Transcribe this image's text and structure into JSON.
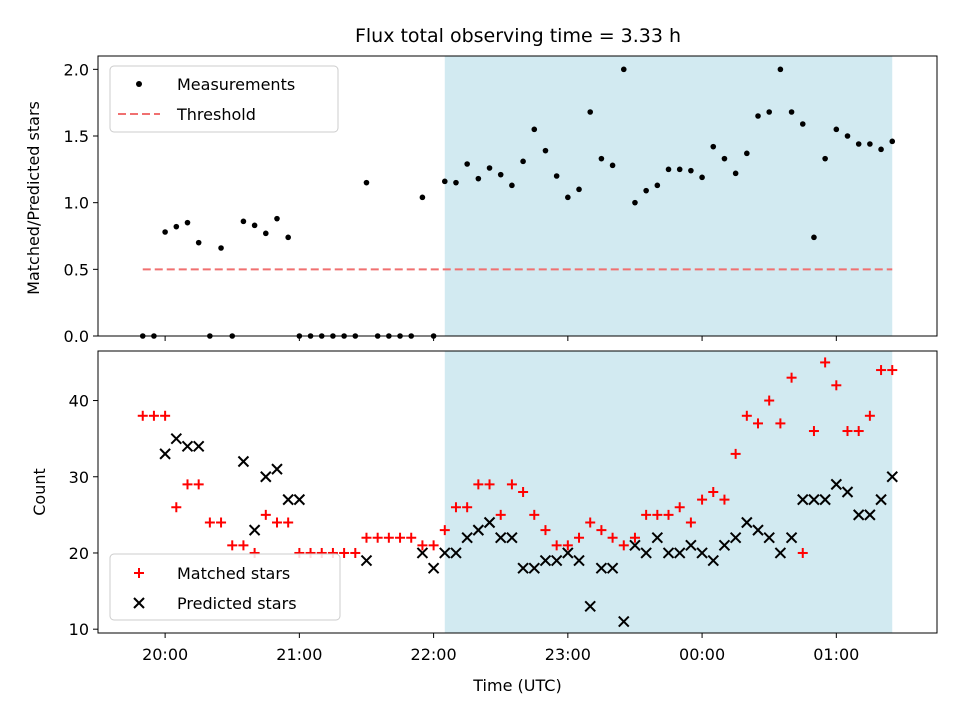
{
  "chart_data": [
    {
      "type": "scatter",
      "title": "Flux total observing time = 3.33 h",
      "xlabel": "",
      "ylabel": "Matched/Predicted stars",
      "ylim": [
        0,
        2.1
      ],
      "yticks": [
        "0.0",
        "0.5",
        "1.0",
        "1.5",
        "2.0"
      ],
      "legend_position": "top-left",
      "threshold": 0.5,
      "shaded_region": [
        "22:05",
        "01:25"
      ],
      "series": [
        {
          "name": "Measurements",
          "color": "#000000",
          "marker": "dot",
          "x": [
            "19:50",
            "19:55",
            "20:00",
            "20:05",
            "20:10",
            "20:15",
            "20:20",
            "20:25",
            "20:30",
            "20:35",
            "20:40",
            "20:45",
            "20:50",
            "20:55",
            "21:00",
            "21:05",
            "21:10",
            "21:15",
            "21:20",
            "21:25",
            "21:30",
            "21:35",
            "21:40",
            "21:45",
            "21:50",
            "21:55",
            "22:00",
            "22:05",
            "22:10",
            "22:15",
            "22:20",
            "22:25",
            "22:30",
            "22:35",
            "22:40",
            "22:45",
            "22:50",
            "22:55",
            "23:00",
            "23:05",
            "23:10",
            "23:15",
            "23:20",
            "23:25",
            "23:30",
            "23:35",
            "23:40",
            "23:45",
            "23:50",
            "23:55",
            "00:00",
            "00:05",
            "00:10",
            "00:15",
            "00:20",
            "00:25",
            "00:30",
            "00:35",
            "00:40",
            "00:45",
            "00:50",
            "00:55",
            "01:00",
            "01:05",
            "01:10",
            "01:15",
            "01:20",
            "01:25"
          ],
          "values": [
            0,
            0,
            0.78,
            0.82,
            0.85,
            0.7,
            0,
            0.66,
            0,
            0.86,
            0.83,
            0.77,
            0.88,
            0.74,
            0,
            0,
            0,
            0,
            0,
            0,
            1.15,
            0,
            0,
            0,
            0,
            1.04,
            0,
            1.16,
            1.15,
            1.29,
            1.18,
            1.26,
            1.21,
            1.13,
            1.31,
            1.55,
            1.39,
            1.2,
            1.04,
            1.1,
            1.68,
            1.33,
            1.28,
            2.0,
            1.0,
            1.09,
            1.13,
            1.25,
            1.25,
            1.24,
            1.19,
            1.42,
            1.33,
            1.22,
            1.37,
            1.65,
            1.68,
            2.0,
            1.68,
            1.59,
            0.74,
            1.33,
            1.55,
            1.5,
            1.44,
            1.44,
            1.4,
            1.46
          ]
        },
        {
          "name": "Threshold",
          "color": "#f07070",
          "marker": "dashed-line",
          "x": [
            "19:50",
            "01:25"
          ],
          "values": [
            0.5,
            0.5
          ]
        }
      ]
    },
    {
      "type": "scatter",
      "title": "",
      "xlabel": "Time (UTC)",
      "ylabel": "Count",
      "ylim": [
        9.5,
        46.5
      ],
      "yticks": [
        "10",
        "20",
        "30",
        "40"
      ],
      "xticks": [
        "20:00",
        "21:00",
        "22:00",
        "23:00",
        "00:00",
        "01:00"
      ],
      "legend_position": "bottom-left",
      "shaded_region": [
        "22:05",
        "01:25"
      ],
      "series": [
        {
          "name": "Matched stars",
          "color": "#ff0000",
          "marker": "plus",
          "x": [
            "19:50",
            "19:55",
            "20:00",
            "20:05",
            "20:10",
            "20:15",
            "20:20",
            "20:25",
            "20:30",
            "20:35",
            "20:40",
            "20:45",
            "20:50",
            "20:55",
            "21:00",
            "21:05",
            "21:10",
            "21:15",
            "21:20",
            "21:25",
            "21:30",
            "21:35",
            "21:40",
            "21:45",
            "21:50",
            "21:55",
            "22:00",
            "22:05",
            "22:10",
            "22:15",
            "22:20",
            "22:25",
            "22:30",
            "22:35",
            "22:40",
            "22:45",
            "22:50",
            "22:55",
            "23:00",
            "23:05",
            "23:10",
            "23:15",
            "23:20",
            "23:25",
            "23:30",
            "23:35",
            "23:40",
            "23:45",
            "23:50",
            "23:55",
            "00:00",
            "00:05",
            "00:10",
            "00:15",
            "00:20",
            "00:25",
            "00:30",
            "00:35",
            "00:40",
            "00:45",
            "00:50",
            "00:55",
            "01:00",
            "01:05",
            "01:10",
            "01:15",
            "01:20",
            "01:25"
          ],
          "values": [
            38,
            38,
            38,
            26,
            29,
            29,
            24,
            24,
            21,
            21,
            20,
            25,
            24,
            24,
            20,
            20,
            20,
            20,
            20,
            20,
            22,
            22,
            22,
            22,
            22,
            21,
            21,
            23,
            26,
            26,
            29,
            29,
            25,
            29,
            28,
            25,
            23,
            21,
            21,
            22,
            24,
            23,
            22,
            21,
            22,
            25,
            25,
            25,
            26,
            24,
            27,
            28,
            27,
            33,
            38,
            37,
            40,
            37,
            43,
            20,
            36,
            45,
            42,
            36,
            36,
            38,
            44,
            44
          ]
        },
        {
          "name": "Predicted stars",
          "color": "#000000",
          "marker": "x",
          "x": [
            "20:00",
            "20:05",
            "20:10",
            "20:15",
            "20:35",
            "20:40",
            "20:45",
            "20:50",
            "20:55",
            "21:00",
            "21:30",
            "21:55",
            "22:00",
            "22:05",
            "22:10",
            "22:15",
            "22:20",
            "22:25",
            "22:30",
            "22:35",
            "22:40",
            "22:45",
            "22:50",
            "22:55",
            "23:00",
            "23:05",
            "23:10",
            "23:15",
            "23:20",
            "23:25",
            "23:30",
            "23:35",
            "23:40",
            "23:45",
            "23:50",
            "23:55",
            "00:00",
            "00:05",
            "00:10",
            "00:15",
            "00:20",
            "00:25",
            "00:30",
            "00:35",
            "00:40",
            "00:45",
            "00:50",
            "00:55",
            "01:00",
            "01:05",
            "01:10",
            "01:15",
            "01:20",
            "01:25"
          ],
          "values": [
            33,
            35,
            34,
            34,
            32,
            23,
            30,
            31,
            27,
            27,
            19,
            20,
            18,
            20,
            20,
            22,
            23,
            24,
            22,
            22,
            18,
            18,
            19,
            19,
            20,
            19,
            13,
            18,
            18,
            11,
            21,
            20,
            22,
            20,
            20,
            21,
            20,
            19,
            21,
            22,
            24,
            23,
            22,
            20,
            22,
            27,
            27,
            27,
            29,
            28,
            25,
            25,
            27,
            30
          ]
        }
      ]
    }
  ]
}
